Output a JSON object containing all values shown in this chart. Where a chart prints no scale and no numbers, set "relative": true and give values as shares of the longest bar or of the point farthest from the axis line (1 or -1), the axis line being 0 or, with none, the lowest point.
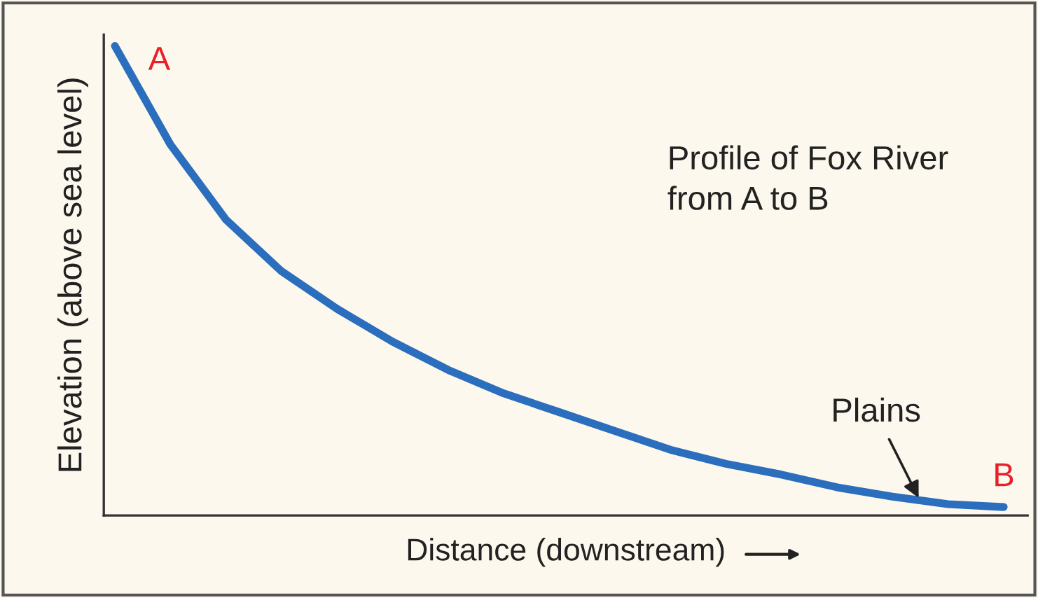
{
  "chart_data": {
    "type": "line",
    "relative": true,
    "xlabel": "Distance (downstream)",
    "ylabel": "Elevation (above sea level)",
    "categories": [
      null,
      null,
      null,
      null,
      null,
      null,
      null,
      null,
      null,
      null,
      null,
      null,
      null,
      null,
      null,
      null,
      null
    ],
    "series": [
      {
        "color": "#2a6ebd",
        "values": [
          1,
          0.79,
          0.63,
          0.52,
          0.44,
          0.37,
          0.31,
          0.26,
          0.22,
          0.18,
          0.14,
          0.11,
          0.087,
          0.06,
          0.04,
          0.024,
          0.018
        ]
      }
    ],
    "annotations": [
      "A",
      "B",
      "Profile of Fox River\nfrom A to B",
      "Plains"
    ],
    "grid": false,
    "marker": "none",
    "line_style": "solid"
  }
}
